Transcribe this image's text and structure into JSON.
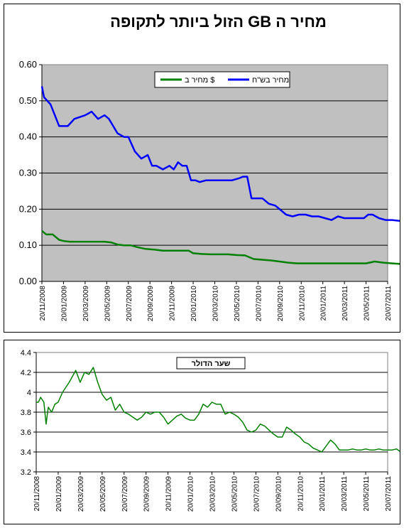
{
  "chart_data": [
    {
      "type": "line",
      "title": "מחיר ה GB הזול ביותר לתקופה",
      "ylim": [
        0,
        0.6
      ],
      "yticks": [
        "0.00",
        "0.10",
        "0.20",
        "0.30",
        "0.40",
        "0.50",
        "0.60"
      ],
      "grid": true,
      "legend_position": "top-center",
      "plot_background": "#c0c0c0",
      "x_categories": [
        "20/11/2008",
        "20/01/2009",
        "20/03/2009",
        "20/05/2009",
        "20/07/2009",
        "20/09/2009",
        "20/11/2009",
        "20/01/2010",
        "20/03/2010",
        "20/05/2010",
        "20/07/2010",
        "20/09/2010",
        "20/11/2010",
        "20/01/2011",
        "20/03/2011",
        "20/05/2011",
        "20/07/2011"
      ],
      "series": [
        {
          "name": "מחיר בש\"ח",
          "color": "#0000ff",
          "x": [
            0,
            0.1,
            0.4,
            0.8,
            1.0,
            1.2,
            1.5,
            2.0,
            2.3,
            2.6,
            2.9,
            3.1,
            3.3,
            3.5,
            3.8,
            4.0,
            4.3,
            4.6,
            4.9,
            5.1,
            5.3,
            5.6,
            5.9,
            6.1,
            6.3,
            6.5,
            6.7,
            6.9,
            7.1,
            7.3,
            7.6,
            7.9,
            8.2,
            8.5,
            8.8,
            9.1,
            9.3,
            9.5,
            9.7,
            9.9,
            10.2,
            10.5,
            10.8,
            11.0,
            11.3,
            11.6,
            11.9,
            12.2,
            12.5,
            12.8,
            13.1,
            13.4,
            13.7,
            14.0,
            14.3,
            14.6,
            14.9,
            15.1,
            15.3,
            15.6,
            15.9,
            16.2,
            16.5,
            16.7
          ],
          "y": [
            0.54,
            0.51,
            0.49,
            0.43,
            0.43,
            0.43,
            0.45,
            0.46,
            0.47,
            0.45,
            0.46,
            0.45,
            0.43,
            0.41,
            0.4,
            0.4,
            0.36,
            0.34,
            0.35,
            0.32,
            0.32,
            0.31,
            0.32,
            0.31,
            0.33,
            0.32,
            0.32,
            0.28,
            0.28,
            0.275,
            0.28,
            0.28,
            0.28,
            0.28,
            0.28,
            0.285,
            0.29,
            0.29,
            0.23,
            0.23,
            0.23,
            0.215,
            0.21,
            0.2,
            0.185,
            0.18,
            0.185,
            0.185,
            0.18,
            0.18,
            0.175,
            0.17,
            0.18,
            0.175,
            0.175,
            0.175,
            0.175,
            0.185,
            0.185,
            0.175,
            0.17,
            0.17,
            0.168,
            0.167
          ]
        },
        {
          "name": "מחיר ב $",
          "color": "#008000",
          "x": [
            0,
            0.2,
            0.5,
            0.8,
            1.0,
            1.3,
            1.6,
            2.0,
            2.3,
            2.6,
            2.9,
            3.2,
            3.5,
            3.8,
            4.1,
            4.4,
            4.8,
            5.2,
            5.6,
            6.0,
            6.4,
            6.8,
            7.0,
            7.4,
            7.8,
            8.2,
            8.6,
            9.0,
            9.4,
            9.8,
            10.2,
            10.6,
            11.0,
            11.4,
            11.8,
            12.2,
            12.6,
            13.0,
            13.4,
            13.8,
            14.2,
            14.6,
            15.0,
            15.4,
            15.8,
            16.2,
            16.7
          ],
          "y": [
            0.14,
            0.13,
            0.13,
            0.115,
            0.112,
            0.11,
            0.11,
            0.11,
            0.11,
            0.11,
            0.11,
            0.108,
            0.102,
            0.1,
            0.1,
            0.095,
            0.09,
            0.088,
            0.085,
            0.085,
            0.085,
            0.085,
            0.078,
            0.076,
            0.075,
            0.075,
            0.075,
            0.073,
            0.072,
            0.062,
            0.06,
            0.058,
            0.055,
            0.052,
            0.05,
            0.05,
            0.05,
            0.05,
            0.05,
            0.05,
            0.05,
            0.05,
            0.05,
            0.055,
            0.052,
            0.05,
            0.048
          ]
        }
      ]
    },
    {
      "type": "line",
      "title": "שער הדולר",
      "ylim": [
        3.2,
        4.4
      ],
      "yticks": [
        "3.2",
        "3.4",
        "3.6",
        "3.8",
        "4",
        "4.2",
        "4.4"
      ],
      "grid": true,
      "legend_position": "top-center",
      "plot_background": "#ffffff",
      "x_categories": [
        "20/11/2008",
        "20/01/2009",
        "20/03/2009",
        "20/05/2009",
        "20/07/2009",
        "20/09/2009",
        "20/11/2009",
        "20/01/2010",
        "20/03/2010",
        "20/05/2010",
        "20/07/2010",
        "20/09/2010",
        "20/11/2010",
        "20/01/2011",
        "20/03/2011",
        "20/05/2011",
        "20/07/2011"
      ],
      "series": [
        {
          "name": "",
          "color": "#008000",
          "x": [
            0,
            0.1,
            0.2,
            0.35,
            0.45,
            0.55,
            0.7,
            0.85,
            1.0,
            1.2,
            1.5,
            1.8,
            2.0,
            2.2,
            2.4,
            2.6,
            2.8,
            3.0,
            3.2,
            3.4,
            3.6,
            3.8,
            4.0,
            4.2,
            4.4,
            4.6,
            4.8,
            5.0,
            5.2,
            5.4,
            5.6,
            5.8,
            6.0,
            6.2,
            6.4,
            6.6,
            6.8,
            7.0,
            7.2,
            7.4,
            7.6,
            7.8,
            8.0,
            8.2,
            8.4,
            8.6,
            8.8,
            9.0,
            9.2,
            9.4,
            9.6,
            9.8,
            10.0,
            10.2,
            10.4,
            10.6,
            10.8,
            11.0,
            11.2,
            11.4,
            11.6,
            11.8,
            12.0,
            12.2,
            12.4,
            12.6,
            12.8,
            13.0,
            13.2,
            13.4,
            13.6,
            13.8,
            14.0,
            14.2,
            14.4,
            14.6,
            14.8,
            15.0,
            15.2,
            15.4,
            15.6,
            15.8,
            16.0,
            16.2,
            16.4,
            16.6,
            16.7
          ],
          "y": [
            3.9,
            3.9,
            3.95,
            3.9,
            3.68,
            3.85,
            3.8,
            3.88,
            3.9,
            4.0,
            4.1,
            4.22,
            4.1,
            4.2,
            4.18,
            4.25,
            4.1,
            3.98,
            3.92,
            3.95,
            3.82,
            3.88,
            3.8,
            3.78,
            3.75,
            3.72,
            3.75,
            3.8,
            3.78,
            3.8,
            3.8,
            3.75,
            3.68,
            3.72,
            3.76,
            3.78,
            3.74,
            3.72,
            3.72,
            3.78,
            3.88,
            3.85,
            3.9,
            3.88,
            3.88,
            3.78,
            3.8,
            3.78,
            3.75,
            3.7,
            3.62,
            3.6,
            3.62,
            3.68,
            3.66,
            3.62,
            3.58,
            3.55,
            3.55,
            3.65,
            3.62,
            3.58,
            3.55,
            3.5,
            3.48,
            3.44,
            3.42,
            3.4,
            3.46,
            3.52,
            3.48,
            3.42,
            3.42,
            3.42,
            3.43,
            3.42,
            3.42,
            3.43,
            3.42,
            3.42,
            3.43,
            3.42,
            3.42,
            3.42,
            3.43,
            3.4,
            3.46
          ]
        }
      ]
    }
  ]
}
